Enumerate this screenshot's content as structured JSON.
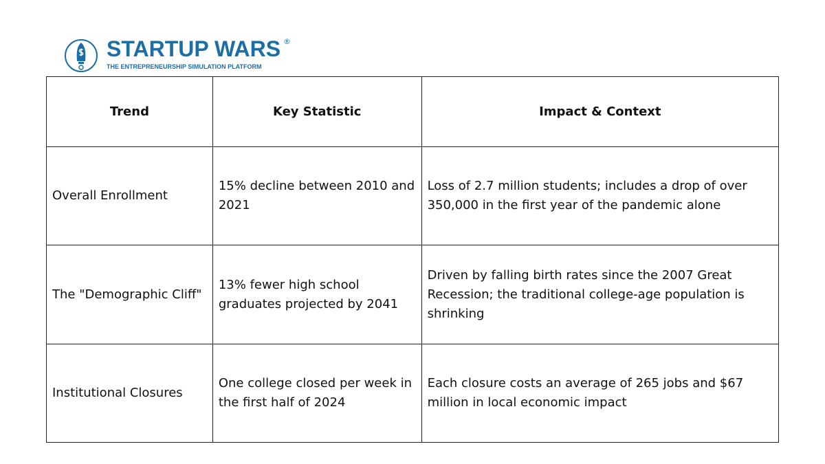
{
  "logo": {
    "title": "STARTUP WARS",
    "registered": "®",
    "subtitle": "THE ENTREPRENEURSHIP SIMULATION PLATFORM",
    "color": "#1c6ea4"
  },
  "table": {
    "headers": [
      "Trend",
      "Key Statistic",
      "Impact & Context"
    ],
    "rows": [
      [
        "Overall Enrollment",
        "15% decline between 2010 and 2021",
        "Loss of 2.7 million students; includes a drop of over 350,000 in the first year of the pandemic alone"
      ],
      [
        "The \"Demographic Cliff\"",
        "13% fewer high school graduates projected by 2041",
        "Driven by falling birth rates since the 2007 Great Recession; the traditional college-age population is shrinking"
      ],
      [
        "Institutional Closures",
        "One college closed per week in the first half of 2024",
        "Each closure costs an average of 265 jobs and $67 million in local economic impact"
      ]
    ]
  }
}
